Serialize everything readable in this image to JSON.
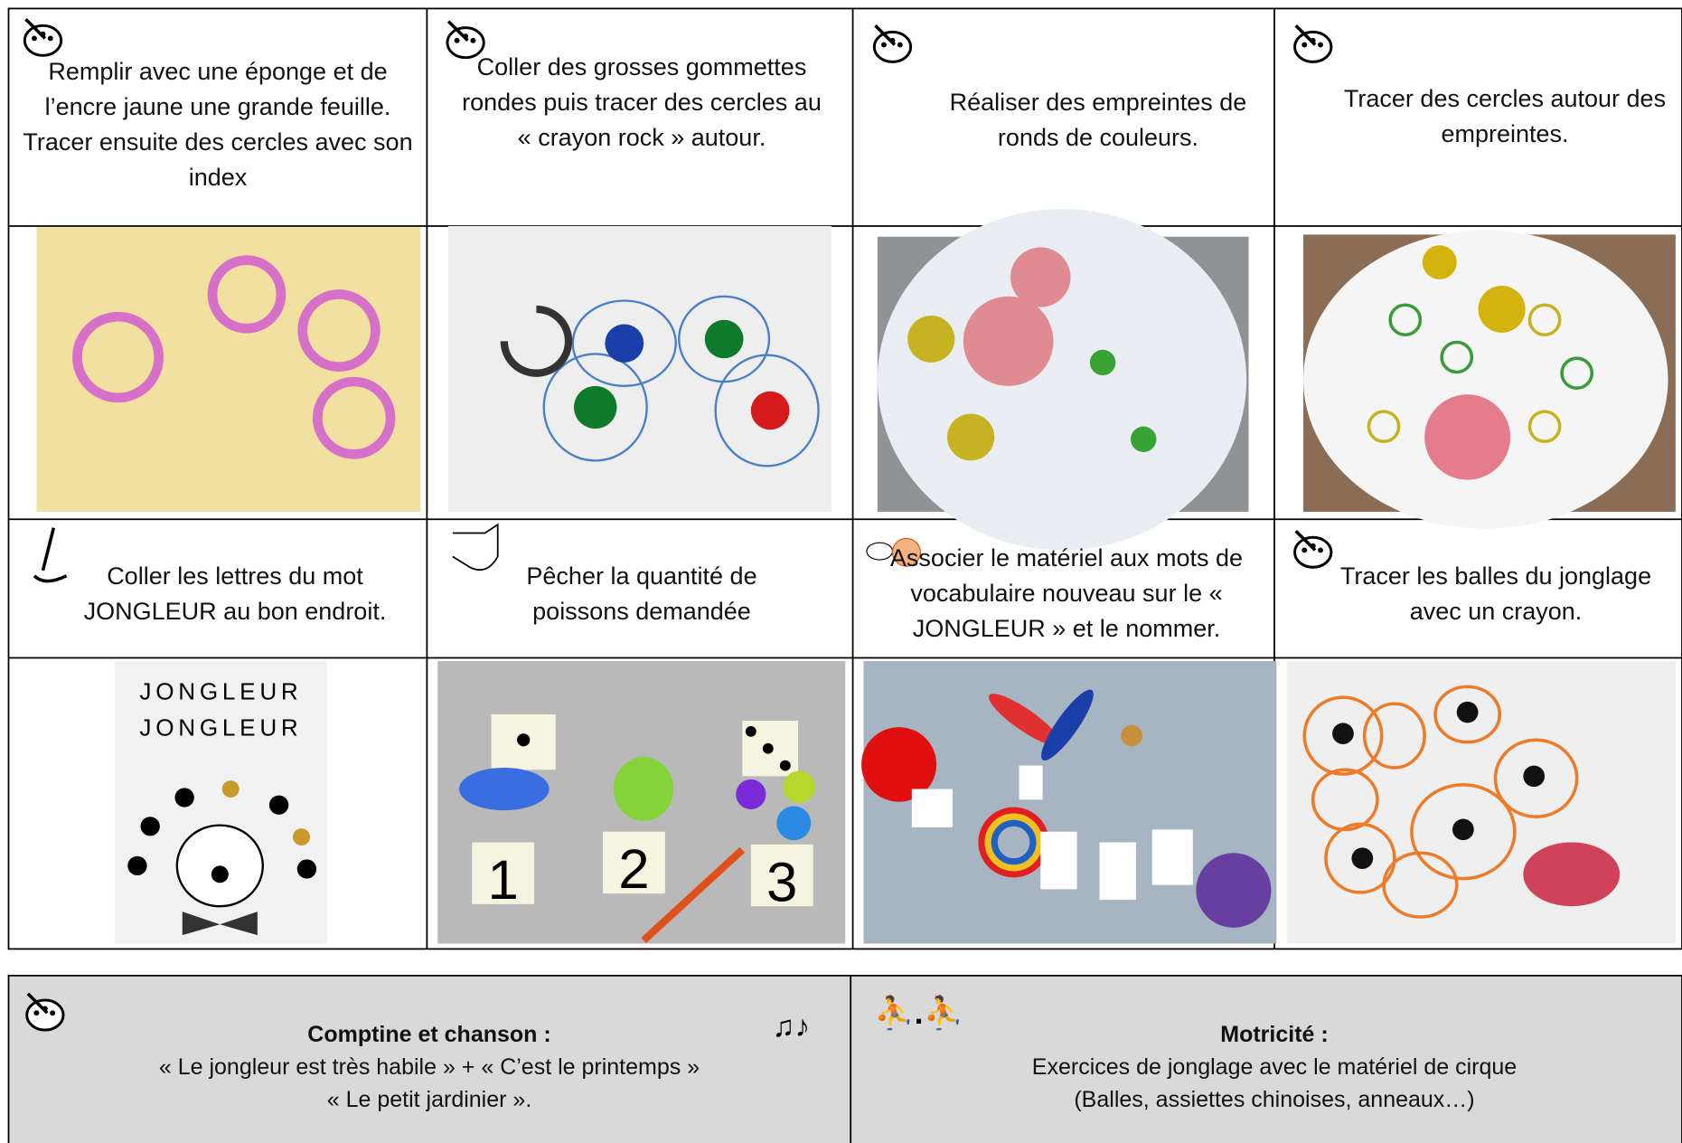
{
  "activities": [
    {
      "text": "Remplir avec une éponge et de l’encre jaune une grande feuille. Tracer ensuite des cercles avec son index"
    },
    {
      "text": "Coller des grosses gommettes rondes puis tracer des cercles au « crayon rock » autour."
    },
    {
      "text": "Réaliser des empreintes de ronds de couleurs."
    },
    {
      "text": "Tracer des cercles autour des empreintes."
    },
    {
      "text": "Coller les lettres du mot JONGLEUR au bon endroit."
    },
    {
      "text": "Pêcher la quantité de poissons demandée"
    },
    {
      "text": "Associer le matériel aux mots de vocabulaire nouveau sur le « JONGLEUR » et le nommer."
    },
    {
      "text": "Tracer les balles du jonglage avec un crayon."
    }
  ],
  "photo_texts": {
    "word": "JONGLEUR",
    "numbers": [
      "1",
      "2",
      "3"
    ]
  },
  "footer": [
    {
      "title": "Comptine et chanson :",
      "lines": [
        "« Le jongleur est très habile » + « C’est le printemps »",
        "« Le petit jardinier »."
      ]
    },
    {
      "title": "Motricité :",
      "lines": [
        "Exercices de jonglage avec le matériel de cirque",
        "(Balles, assiettes chinoises, anneaux…)"
      ]
    }
  ]
}
